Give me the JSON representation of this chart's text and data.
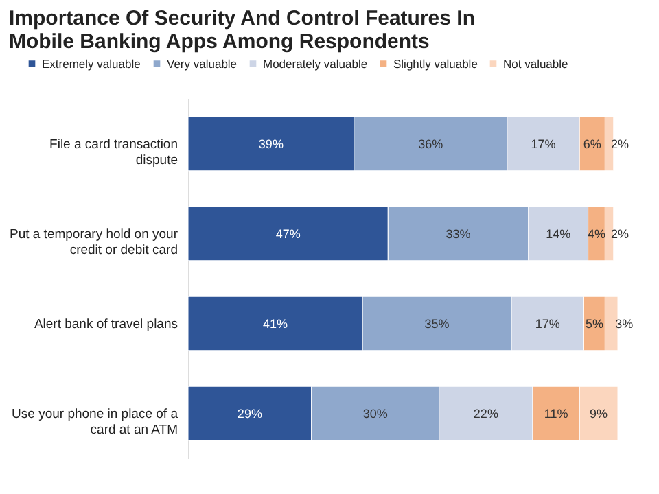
{
  "chart_data": {
    "type": "bar",
    "orientation": "horizontal",
    "stacked": true,
    "title": "Importance Of Security And Control Features In Mobile Banking Apps Among Respondents",
    "categories": [
      "File a card transaction dispute",
      "Put a temporary hold on your credit or debit card",
      "Alert bank of travel plans",
      "Use your phone in place of a card at an ATM"
    ],
    "series": [
      {
        "name": "Extremely valuable",
        "color": "#2f5597",
        "values": [
          39,
          47,
          41,
          29
        ],
        "value_labels": [
          "39%",
          "47%",
          "41%",
          "29%"
        ]
      },
      {
        "name": "Very valuable",
        "color": "#8fa8cc",
        "values": [
          36,
          33,
          35,
          30
        ],
        "value_labels": [
          "36%",
          "33%",
          "35%",
          "30%"
        ]
      },
      {
        "name": "Moderately valuable",
        "color": "#cdd5e6",
        "values": [
          17,
          14,
          17,
          22
        ],
        "value_labels": [
          "17%",
          "14%",
          "17%",
          "22%"
        ]
      },
      {
        "name": "Slightly valuable",
        "color": "#f4b183",
        "values": [
          6,
          4,
          5,
          11
        ],
        "value_labels": [
          "6%",
          "4%",
          "5%",
          "11%"
        ]
      },
      {
        "name": "Not valuable",
        "color": "#fbd6be",
        "values": [
          2,
          2,
          3,
          9
        ],
        "value_labels": [
          "2%",
          "2%",
          "3%",
          "9%"
        ]
      }
    ],
    "legend": "top"
  }
}
